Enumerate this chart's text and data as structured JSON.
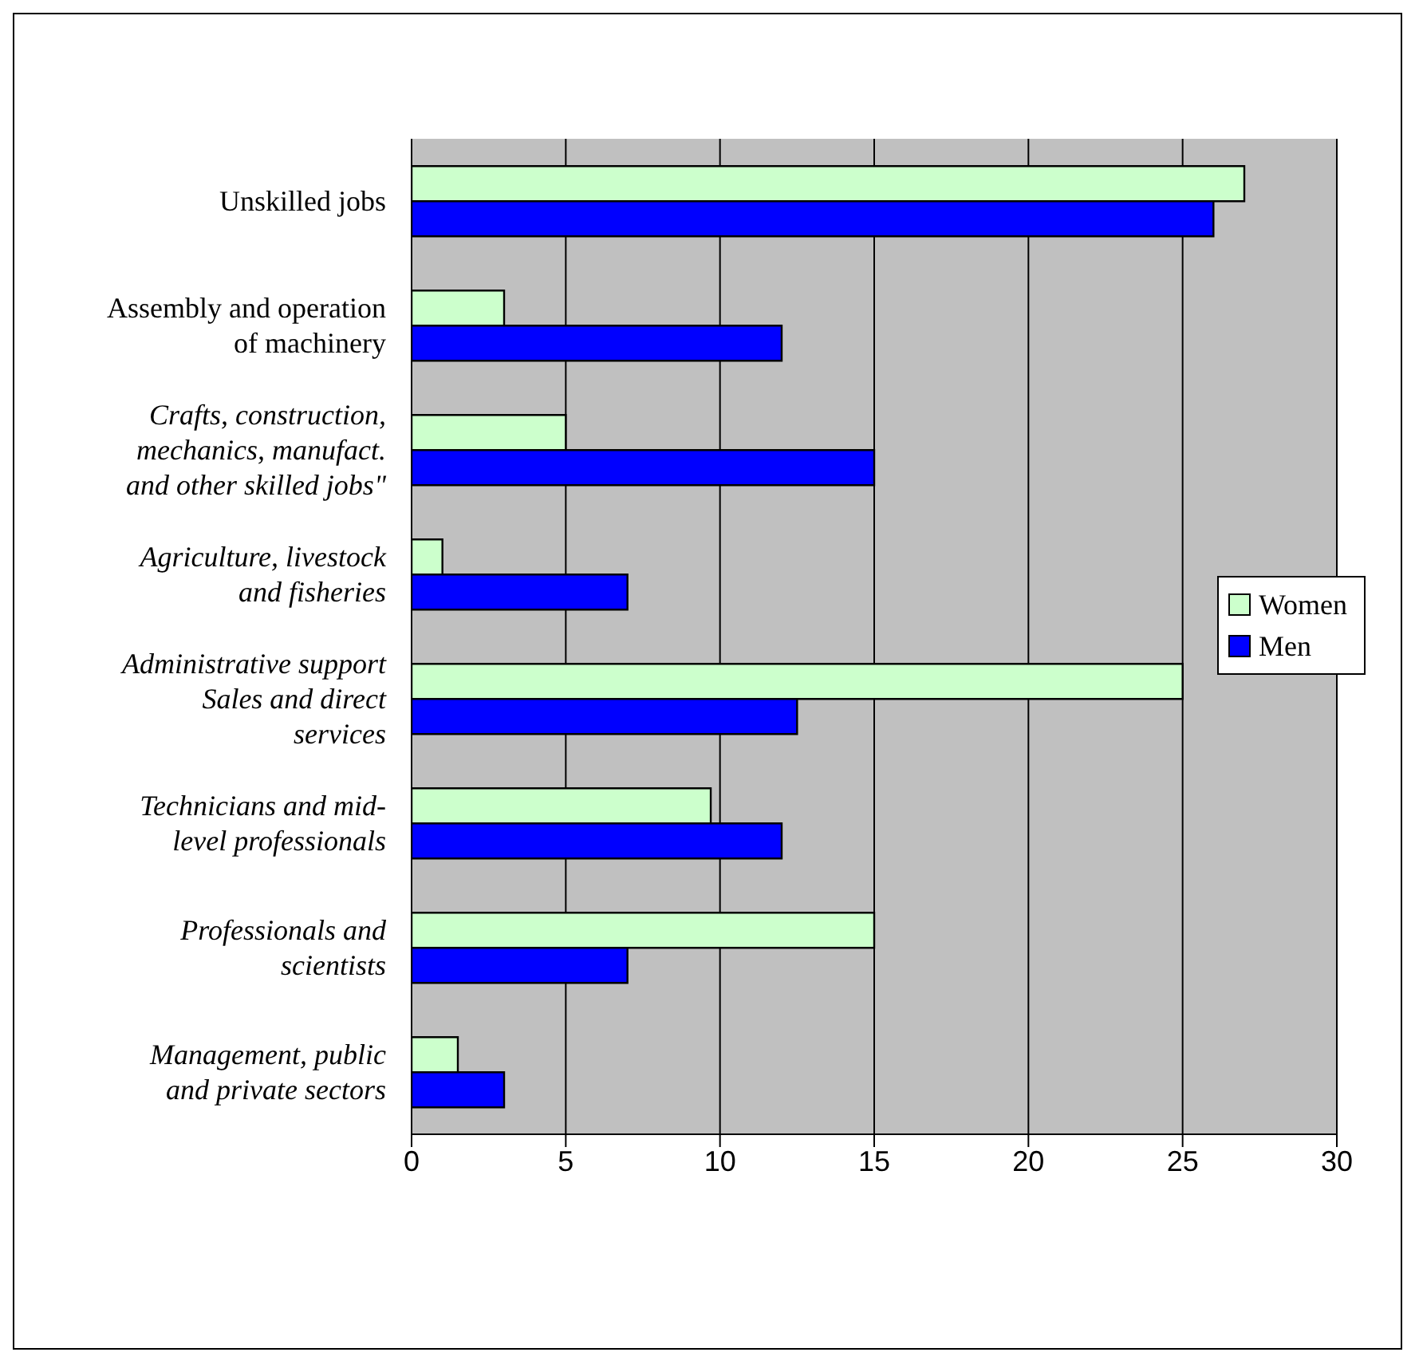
{
  "chart_data": {
    "type": "bar",
    "orientation": "horizontal",
    "categories": [
      "Unskilled jobs",
      "Assembly and operation\nof machinery",
      "Crafts, construction,\nmechanics, manufact.\nand other skilled jobs\"",
      "Agriculture, livestock\nand fisheries",
      "Administrative support\nSales and direct\nservices",
      "Technicians and mid-\nlevel professionals",
      "Professionals and\nscientists",
      "Management, public\nand private sectors"
    ],
    "series": [
      {
        "name": "Women",
        "color": "#ccffcc",
        "values": [
          27,
          3,
          5,
          1,
          25,
          9.7,
          15,
          1.5
        ]
      },
      {
        "name": "Men",
        "color": "#0000ff",
        "values": [
          26,
          12,
          15,
          7,
          12.5,
          12,
          7,
          3
        ]
      }
    ],
    "xlim": [
      0,
      30
    ],
    "xticks": [
      0,
      5,
      10,
      15,
      20,
      25,
      30
    ],
    "grid": "x",
    "legend": "right"
  }
}
